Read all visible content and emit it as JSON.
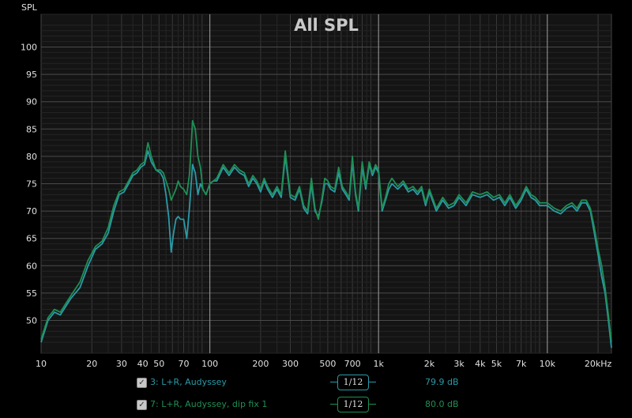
{
  "chart_data": {
    "type": "line",
    "title": "All SPL",
    "ylabel": "SPL",
    "xlabel": "",
    "xscale": "log",
    "xlim": [
      10,
      24000
    ],
    "ylim": [
      44,
      106
    ],
    "yticks": [
      50,
      55,
      60,
      65,
      70,
      75,
      80,
      85,
      90,
      95,
      100
    ],
    "xticks": [
      {
        "v": 10,
        "label": "10"
      },
      {
        "v": 20,
        "label": "20"
      },
      {
        "v": 30,
        "label": "30"
      },
      {
        "v": 40,
        "label": "40"
      },
      {
        "v": 50,
        "label": "50"
      },
      {
        "v": 70,
        "label": "70"
      },
      {
        "v": 100,
        "label": "100"
      },
      {
        "v": 200,
        "label": "200"
      },
      {
        "v": 300,
        "label": "300"
      },
      {
        "v": 500,
        "label": "500"
      },
      {
        "v": 700,
        "label": "700"
      },
      {
        "v": 1000,
        "label": "1k"
      },
      {
        "v": 2000,
        "label": "2k"
      },
      {
        "v": 3000,
        "label": "3k"
      },
      {
        "v": 4000,
        "label": "4k"
      },
      {
        "v": 5000,
        "label": "5k"
      },
      {
        "v": 7000,
        "label": "7k"
      },
      {
        "v": 10000,
        "label": "10k"
      },
      {
        "v": 20000,
        "label": "20kHz"
      }
    ],
    "grid": true,
    "series": [
      {
        "name": "3: L+R, Audyssey",
        "color": "#2a9aa8",
        "smoothing": "1/12",
        "value": "79.9 dB",
        "x": [
          10,
          11,
          12,
          13,
          15,
          17,
          19,
          21,
          23,
          25,
          27,
          29,
          31,
          33,
          35,
          37,
          39,
          41,
          43,
          45,
          48,
          51,
          53,
          55,
          57,
          59,
          61,
          63,
          65,
          67,
          70,
          73,
          76,
          79,
          82,
          85,
          88,
          91,
          95,
          100,
          105,
          110,
          120,
          130,
          140,
          150,
          160,
          170,
          180,
          190,
          200,
          210,
          220,
          235,
          250,
          265,
          280,
          300,
          320,
          340,
          360,
          380,
          400,
          420,
          440,
          460,
          480,
          500,
          520,
          550,
          580,
          610,
          640,
          670,
          700,
          730,
          760,
          800,
          840,
          880,
          920,
          960,
          1000,
          1050,
          1100,
          1150,
          1200,
          1300,
          1400,
          1500,
          1600,
          1700,
          1800,
          1900,
          2000,
          2200,
          2400,
          2600,
          2800,
          3000,
          3300,
          3600,
          4000,
          4400,
          4800,
          5200,
          5600,
          6000,
          6500,
          7000,
          7500,
          8000,
          8500,
          9000,
          10000,
          11000,
          12000,
          13000,
          14000,
          15000,
          16000,
          17000,
          18000,
          19000,
          20000,
          21000,
          22000,
          23000,
          24000
        ],
        "y": [
          46,
          50,
          51.5,
          51,
          54,
          56,
          60,
          63,
          64,
          66,
          70,
          73,
          73.5,
          75,
          76.5,
          77,
          78,
          78.5,
          81,
          79,
          77.5,
          77,
          76,
          73,
          69,
          62.5,
          66,
          68.5,
          69,
          68.5,
          68.5,
          65,
          71,
          78.5,
          77,
          73,
          75,
          74,
          73,
          75,
          75.5,
          75.5,
          78,
          76.5,
          78,
          77,
          76.5,
          74.5,
          76,
          75,
          73.5,
          75.5,
          74,
          72.5,
          74,
          72.5,
          80,
          72.5,
          72,
          74,
          70.5,
          69.5,
          75,
          70,
          69,
          71.5,
          75,
          75,
          74,
          73.5,
          77,
          74,
          73,
          72,
          79,
          73,
          70,
          78,
          74,
          78.5,
          76.5,
          78,
          77,
          70,
          72,
          74,
          75,
          74,
          75,
          73.5,
          74,
          73,
          74,
          71,
          73.5,
          70,
          72,
          70.5,
          71,
          72.5,
          71,
          73,
          72.5,
          73,
          72,
          72.5,
          71,
          72.5,
          70.5,
          72,
          74,
          72.5,
          72,
          71,
          71,
          70,
          69.5,
          70.5,
          71,
          70,
          71.5,
          71.5,
          70,
          66,
          62,
          58,
          55,
          50,
          45
        ]
      },
      {
        "name": "7: L+R, Audyssey, dip fix 1",
        "color": "#1f8f55",
        "smoothing": "1/12",
        "value": "80.0 dB",
        "x": [
          10,
          11,
          12,
          13,
          15,
          17,
          19,
          21,
          23,
          25,
          27,
          29,
          31,
          33,
          35,
          37,
          39,
          41,
          43,
          45,
          48,
          51,
          53,
          55,
          57,
          59,
          61,
          63,
          65,
          67,
          70,
          73,
          76,
          79,
          82,
          85,
          88,
          91,
          95,
          100,
          105,
          110,
          120,
          130,
          140,
          150,
          160,
          170,
          180,
          190,
          200,
          210,
          220,
          235,
          250,
          265,
          280,
          300,
          320,
          340,
          360,
          380,
          400,
          420,
          440,
          460,
          480,
          500,
          520,
          550,
          580,
          610,
          640,
          670,
          700,
          730,
          760,
          800,
          840,
          880,
          920,
          960,
          1000,
          1050,
          1100,
          1150,
          1200,
          1300,
          1400,
          1500,
          1600,
          1700,
          1800,
          1900,
          2000,
          2200,
          2400,
          2600,
          2800,
          3000,
          3300,
          3600,
          4000,
          4400,
          4800,
          5200,
          5600,
          6000,
          6500,
          7000,
          7500,
          8000,
          8500,
          9000,
          10000,
          11000,
          12000,
          13000,
          14000,
          15000,
          16000,
          17000,
          18000,
          19000,
          20000,
          21000,
          22000,
          23000,
          24000
        ],
        "y": [
          46.5,
          50.5,
          52,
          51.5,
          54.5,
          57,
          61,
          63.5,
          64.5,
          67,
          71,
          73.5,
          74,
          75.5,
          77,
          77.5,
          78.5,
          79,
          82.5,
          80,
          77.5,
          77.5,
          77,
          75.5,
          74,
          72,
          73,
          74,
          75.5,
          74.5,
          74,
          73,
          77,
          86.5,
          85,
          80,
          78,
          74,
          73,
          75,
          75.5,
          76,
          78.5,
          77,
          78.5,
          77.5,
          77,
          75,
          76.5,
          75.5,
          74,
          76,
          74.5,
          73,
          74.5,
          73,
          81,
          73,
          72.5,
          74.5,
          71,
          70,
          76,
          70.5,
          68.5,
          72,
          76,
          75.5,
          74.5,
          74,
          78,
          74.5,
          73.5,
          72.5,
          80,
          73.5,
          70.5,
          79,
          74.5,
          79,
          77,
          78.5,
          77.5,
          70.5,
          72.5,
          75,
          76,
          74.5,
          75.5,
          74,
          74.5,
          73.5,
          74.5,
          71.5,
          74,
          70.5,
          72.5,
          71,
          71.5,
          73,
          71.5,
          73.5,
          73,
          73.5,
          72.5,
          73,
          71.5,
          73,
          71,
          72.5,
          74.5,
          73,
          72.5,
          71.5,
          71.5,
          70.5,
          70,
          71,
          71.5,
          70.5,
          72,
          72,
          70.5,
          67,
          63,
          60,
          56,
          51,
          46
        ]
      }
    ]
  }
}
